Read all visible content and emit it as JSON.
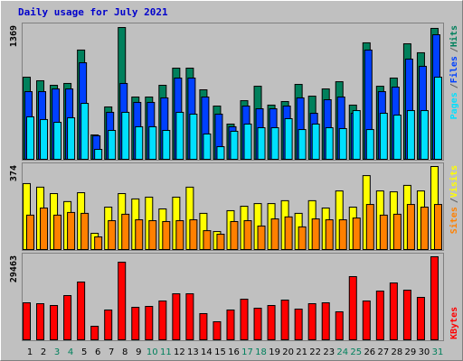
{
  "chart_data": [
    {
      "type": "bar",
      "title": "Daily usage for July 2021",
      "title_color": "#0000cc",
      "ylim": [
        0,
        1369
      ],
      "yticks": [
        1369
      ],
      "legend_separator": "/",
      "series": [
        {
          "name": "Pages",
          "color": "#00e0ff",
          "values": [
            441,
            413,
            384,
            431,
            581,
            103,
            300,
            488,
            338,
            338,
            300,
            488,
            469,
            263,
            131,
            291,
            366,
            328,
            328,
            422,
            309,
            366,
            328,
            319,
            506,
            309,
            478,
            459,
            506,
            506,
            853
          ]
        },
        {
          "name": "Files",
          "color": "#0040ff",
          "values": [
            703,
            703,
            731,
            731,
            1003,
            244,
            488,
            788,
            591,
            591,
            638,
            844,
            844,
            647,
            469,
            338,
            553,
            525,
            525,
            553,
            638,
            478,
            619,
            647,
            478,
            1135,
            703,
            750,
            1041,
            966,
            1294
          ]
        },
        {
          "name": "Hits",
          "color": "#00805c",
          "values": [
            853,
            816,
            769,
            788,
            1135,
            253,
            544,
            1369,
            647,
            647,
            769,
            947,
            947,
            722,
            553,
            366,
            609,
            759,
            563,
            600,
            778,
            656,
            731,
            806,
            563,
            1210,
            759,
            844,
            1200,
            1107,
            1360
          ]
        }
      ]
    },
    {
      "type": "bar",
      "ylim": [
        0,
        374
      ],
      "yticks": [
        374
      ],
      "legend_separator": "/",
      "series": [
        {
          "name": "Sites",
          "color": "#ff8000",
          "values": [
            155,
            187,
            155,
            167,
            163,
            57,
            130,
            159,
            134,
            130,
            126,
            130,
            134,
            85,
            69,
            126,
            130,
            106,
            138,
            147,
            102,
            138,
            134,
            134,
            142,
            203,
            155,
            159,
            203,
            191,
            203
          ]
        },
        {
          "name": "Visits",
          "color": "#ffff00",
          "values": [
            297,
            281,
            252,
            216,
            256,
            73,
            191,
            252,
            228,
            236,
            183,
            236,
            281,
            163,
            81,
            175,
            195,
            207,
            207,
            220,
            163,
            220,
            187,
            264,
            191,
            333,
            264,
            260,
            289,
            264,
            374
          ]
        }
      ]
    },
    {
      "type": "bar",
      "ylim": [
        0,
        29463
      ],
      "yticks": [
        29463
      ],
      "categories": [
        "1",
        "2",
        "3",
        "4",
        "5",
        "6",
        "7",
        "8",
        "9",
        "10",
        "11",
        "12",
        "13",
        "14",
        "15",
        "16",
        "17",
        "18",
        "19",
        "20",
        "21",
        "22",
        "23",
        "24",
        "25",
        "26",
        "27",
        "28",
        "29",
        "30",
        "31"
      ],
      "weekend_color": "#00805c",
      "weekends": [
        "3",
        "4",
        "10",
        "11",
        "17",
        "18",
        "24",
        "25",
        "31"
      ],
      "series": [
        {
          "name": "KBytes",
          "color": "#ff0000",
          "values": [
            13130,
            12810,
            12170,
            15690,
            20500,
            4800,
            10570,
            27540,
            11530,
            11850,
            13770,
            16330,
            16330,
            9290,
            6400,
            10570,
            14410,
            11210,
            12170,
            14090,
            10890,
            12810,
            13130,
            9930,
            22420,
            13770,
            17290,
            20170,
            17610,
            15050,
            29463
          ]
        }
      ]
    }
  ]
}
